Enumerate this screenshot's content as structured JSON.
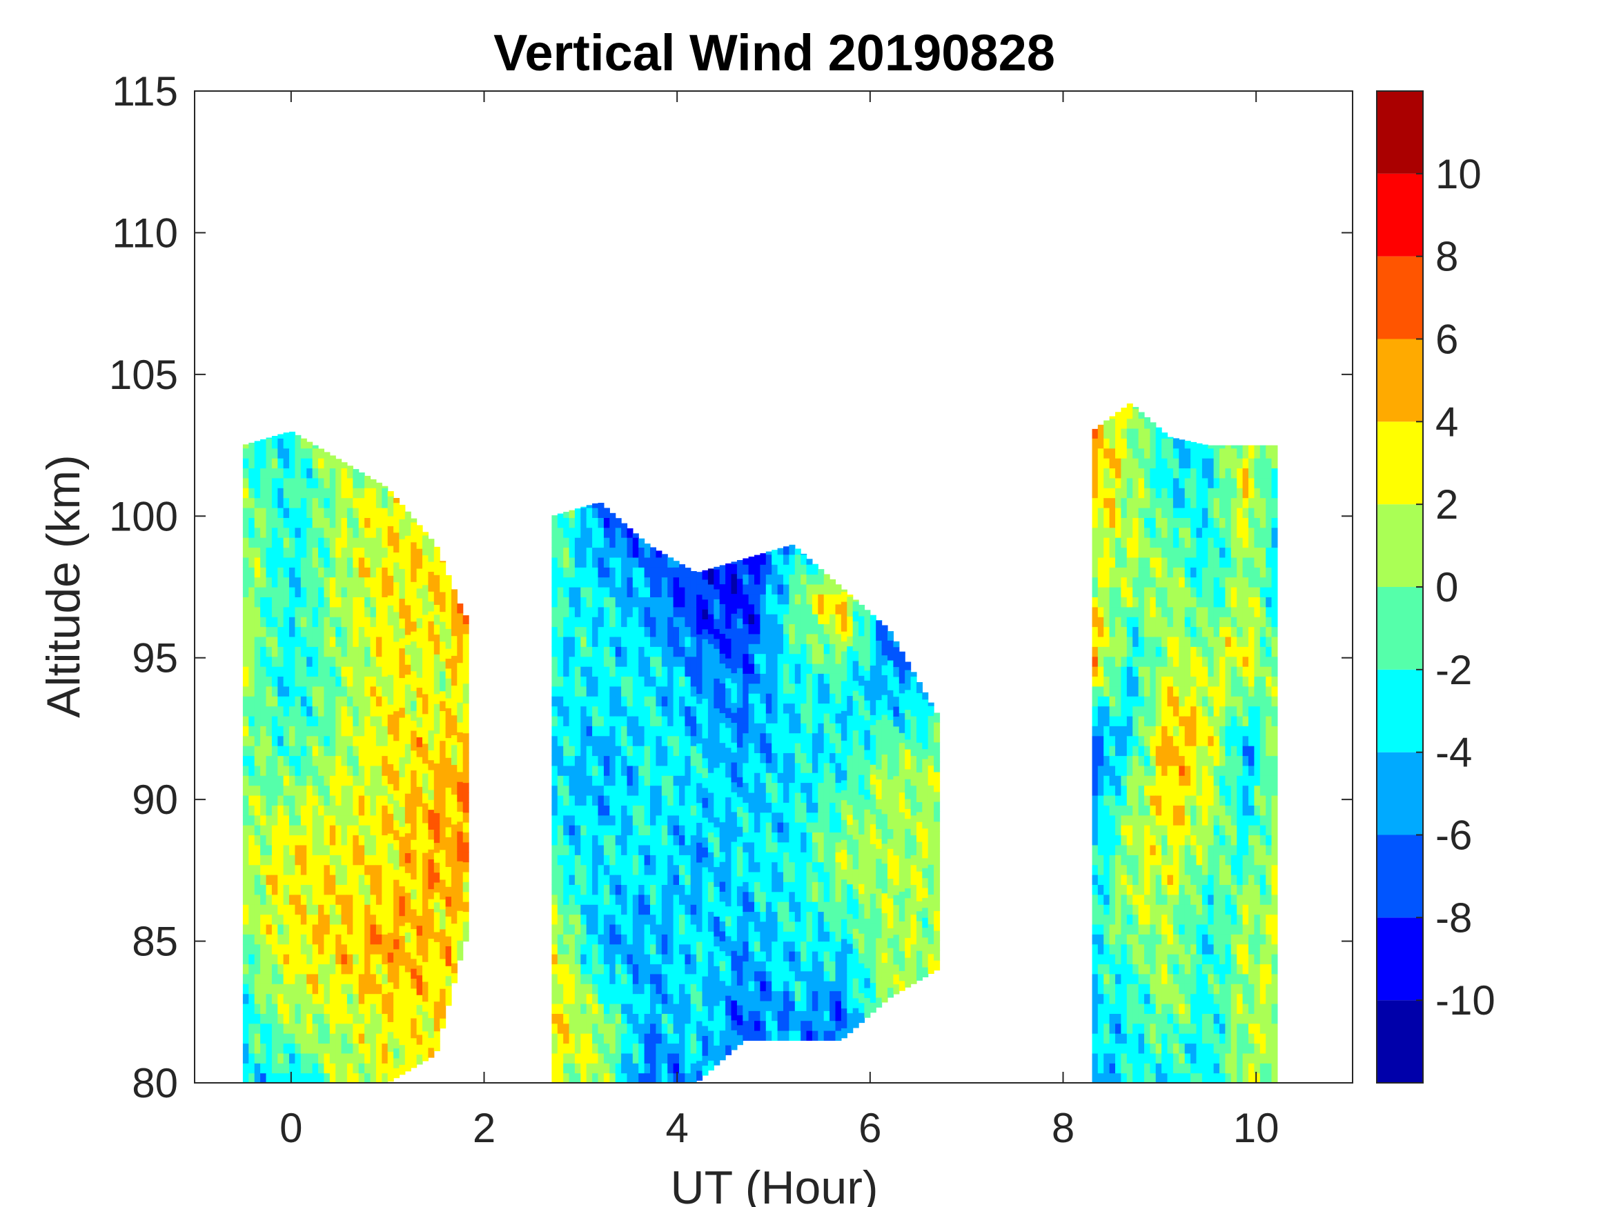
{
  "chart_data": {
    "type": "heatmap",
    "subtype": "filled-contour",
    "title": "Vertical Wind 20190828",
    "xlabel": "UT (Hour)",
    "ylabel": "Altitude (km)",
    "xlim": [
      -1,
      11
    ],
    "ylim": [
      80,
      115
    ],
    "xticks": [
      0,
      2,
      4,
      6,
      8,
      10
    ],
    "yticks": [
      80,
      85,
      90,
      95,
      100,
      105,
      110,
      115
    ],
    "grid": false,
    "colorbar": {
      "range": [
        -12,
        12
      ],
      "levels": [
        -12,
        -10,
        -8,
        -6,
        -4,
        -2,
        0,
        2,
        4,
        6,
        8,
        10,
        12
      ],
      "ticks": [
        -10,
        -8,
        -6,
        -4,
        -2,
        0,
        2,
        4,
        6,
        8,
        10
      ],
      "colors": [
        "#0000AA",
        "#0000FF",
        "#0055FF",
        "#00AAFF",
        "#00FFFF",
        "#55FFAA",
        "#AAFF55",
        "#FFFF00",
        "#FFAA00",
        "#FF5500",
        "#FF0000",
        "#AA0000"
      ],
      "placement": "right"
    },
    "blocks": [
      {
        "x": [
          -0.5,
          0,
          0.5,
          1,
          1.5,
          1.8
        ],
        "top": [
          102.5,
          103,
          102,
          101,
          99,
          96.5
        ],
        "bottom": [
          80,
          80,
          80,
          80,
          81,
          85
        ],
        "alt": [
          103,
          100,
          97,
          94,
          91,
          88,
          85,
          82,
          80
        ],
        "values": [
          [
            -3,
            -2,
            1,
            1,
            3,
            3
          ],
          [
            1,
            -3,
            1,
            3,
            3,
            4
          ],
          [
            1,
            -3,
            1,
            3,
            3,
            5
          ],
          [
            1,
            -3,
            0,
            3,
            2,
            3
          ],
          [
            0,
            -1,
            1,
            3,
            4,
            5
          ],
          [
            1,
            3,
            3,
            3,
            5,
            5
          ],
          [
            0,
            3,
            4,
            5,
            4,
            3
          ],
          [
            -3,
            1,
            1,
            3,
            3,
            3
          ],
          [
            -3,
            -4,
            1,
            2,
            3,
            3
          ]
        ]
      },
      {
        "x": [
          2.7,
          3.2,
          3.7,
          4.2,
          4.7,
          5.2,
          5.7,
          6.2,
          6.7
        ],
        "top": [
          100,
          100.5,
          99,
          98,
          98.5,
          99,
          97.5,
          96,
          93
        ],
        "bottom": [
          80,
          80,
          80,
          80,
          81.5,
          81.5,
          81.5,
          83,
          84
        ],
        "alt": [
          100,
          97,
          94,
          91,
          88,
          85,
          82,
          80
        ],
        "values": [
          [
            1,
            -6,
            -7,
            -8,
            -8,
            -6,
            -6,
            -8,
            -8
          ],
          [
            -3,
            -3,
            -5,
            -8,
            -9,
            -1,
            5,
            -7,
            -6
          ],
          [
            -3,
            -3,
            -3,
            -5,
            -6,
            -3,
            -3,
            -5,
            -5
          ],
          [
            -3,
            -5,
            -3,
            -3,
            -5,
            -3,
            -3,
            1,
            1
          ],
          [
            -3,
            -3,
            -3,
            -5,
            -3,
            -3,
            1,
            1,
            1
          ],
          [
            3,
            -5,
            -5,
            -3,
            -5,
            -3,
            -3,
            1,
            1
          ],
          [
            4,
            1,
            -5,
            -3,
            -7,
            -5,
            -7,
            1,
            1
          ],
          [
            1,
            1,
            -7,
            -5,
            -5,
            -5,
            -5,
            1,
            1
          ]
        ]
      },
      {
        "x": [
          8.3,
          8.7,
          9.1,
          9.5,
          9.9,
          10.2
        ],
        "top": [
          103,
          104,
          102.8,
          102.5,
          102.5,
          102.5
        ],
        "bottom": [
          80,
          80,
          80,
          80,
          80,
          80
        ],
        "alt": [
          104,
          101,
          98,
          95,
          92,
          89,
          86,
          83,
          80
        ],
        "values": [
          [
            5,
            1,
            -3,
            -3,
            1,
            1
          ],
          [
            5,
            1,
            -3,
            -3,
            3,
            -3
          ],
          [
            1,
            1,
            1,
            -3,
            1,
            -3
          ],
          [
            5,
            -3,
            1,
            1,
            3,
            -1
          ],
          [
            -7,
            -3,
            5,
            3,
            -5,
            1
          ],
          [
            -5,
            1,
            3,
            1,
            -3,
            1
          ],
          [
            -3,
            1,
            1,
            -3,
            1,
            1
          ],
          [
            -3,
            -3,
            1,
            -3,
            1,
            1
          ],
          [
            -5,
            -3,
            -3,
            -3,
            1,
            1
          ]
        ]
      }
    ]
  }
}
